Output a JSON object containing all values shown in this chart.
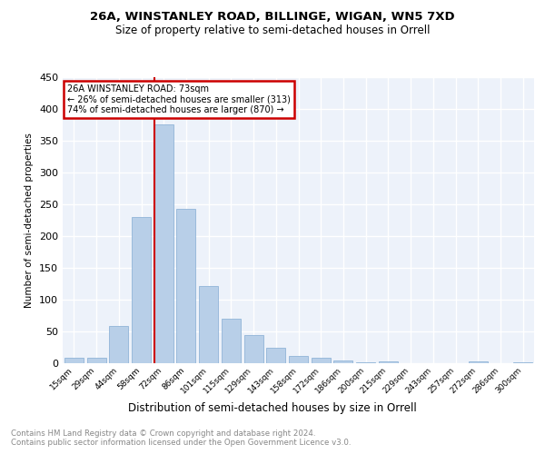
{
  "title1": "26A, WINSTANLEY ROAD, BILLINGE, WIGAN, WN5 7XD",
  "title2": "Size of property relative to semi-detached houses in Orrell",
  "xlabel": "Distribution of semi-detached houses by size in Orrell",
  "ylabel": "Number of semi-detached properties",
  "categories": [
    "15sqm",
    "29sqm",
    "44sqm",
    "58sqm",
    "72sqm",
    "86sqm",
    "101sqm",
    "115sqm",
    "129sqm",
    "143sqm",
    "158sqm",
    "172sqm",
    "186sqm",
    "200sqm",
    "215sqm",
    "229sqm",
    "243sqm",
    "257sqm",
    "272sqm",
    "286sqm",
    "300sqm"
  ],
  "values": [
    8,
    8,
    58,
    230,
    375,
    243,
    121,
    70,
    45,
    25,
    11,
    9,
    5,
    1,
    3,
    0,
    0,
    0,
    3,
    0,
    2
  ],
  "bar_color": "#b8cfe8",
  "bar_edge_color": "#91b4d8",
  "vline_index": 4,
  "vline_color": "#cc0000",
  "annotation_text": "26A WINSTANLEY ROAD: 73sqm\n← 26% of semi-detached houses are smaller (313)\n74% of semi-detached houses are larger (870) →",
  "annotation_box_color": "#cc0000",
  "ylim": [
    0,
    450
  ],
  "yticks": [
    0,
    50,
    100,
    150,
    200,
    250,
    300,
    350,
    400,
    450
  ],
  "footer": "Contains HM Land Registry data © Crown copyright and database right 2024.\nContains public sector information licensed under the Open Government Licence v3.0.",
  "bg_color": "#edf2fa",
  "grid_color": "#ffffff"
}
